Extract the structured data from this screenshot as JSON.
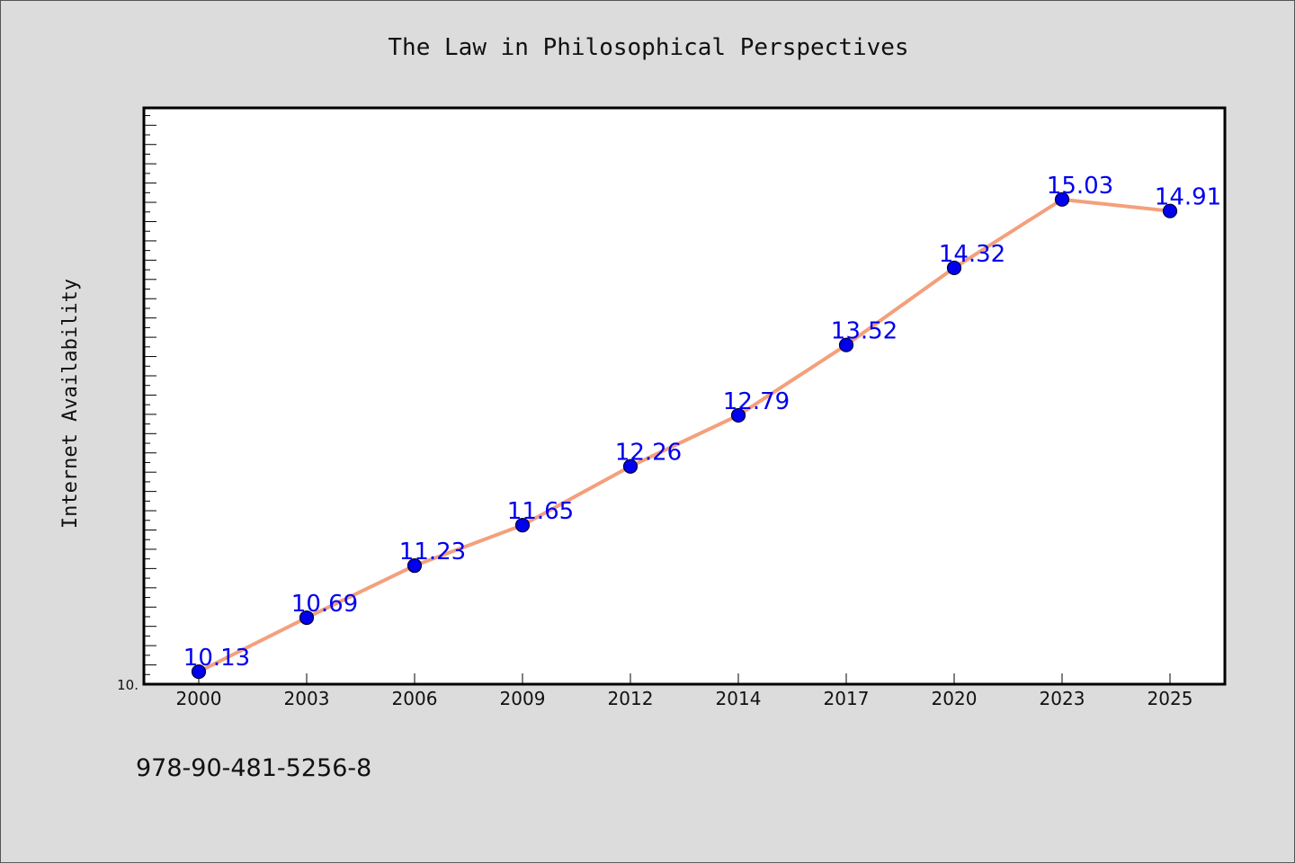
{
  "chart_data": {
    "type": "line",
    "title": "The Law in Philosophical Perspectives",
    "ylabel": "Internet Availability",
    "xlabel": "",
    "y_tick_label": "10.",
    "categories": [
      "2000",
      "2003",
      "2006",
      "2009",
      "2012",
      "2014",
      "2017",
      "2020",
      "2023",
      "2025"
    ],
    "series": [
      {
        "values": [
          10.13,
          10.69,
          11.23,
          11.65,
          12.26,
          12.79,
          13.52,
          14.32,
          15.03,
          14.91
        ],
        "labels": [
          "10.13",
          "10.69",
          "11.23",
          "11.65",
          "12.26",
          "12.79",
          "13.52",
          "14.32",
          "15.03",
          "14.91"
        ]
      }
    ],
    "ylim": [
      10.0,
      15.98
    ],
    "grid": false,
    "legend": "none",
    "colors": {
      "line": "#f4a07c",
      "marker": "#0000ee",
      "marker_edge": "#000033",
      "data_label": "#0000ee",
      "plot_bg": "#ffffff",
      "page_bg": "#dcdcdc"
    }
  },
  "footer": {
    "isbn": "978-90-481-5256-8"
  }
}
